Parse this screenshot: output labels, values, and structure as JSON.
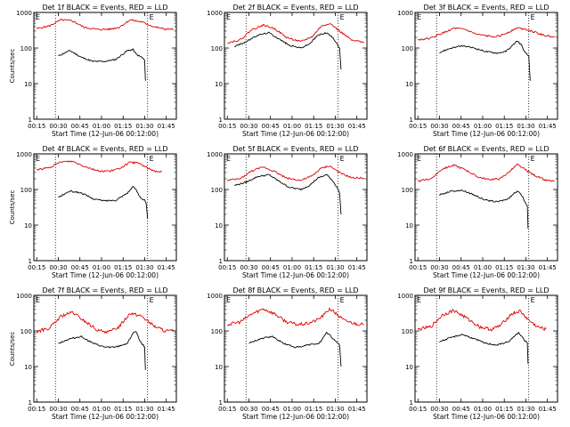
{
  "chart_data": {
    "type": "line",
    "layout": {
      "rows": 3,
      "cols": 3
    },
    "common": {
      "xlabel": "Start Time (12-Jun-06 00:12:00)",
      "ylabel": "Counts/sec",
      "x_ticks": [
        "00:15",
        "00:30",
        "00:45",
        "01:00",
        "01:15",
        "01:30",
        "01:45"
      ],
      "x_tick_minutes": [
        15,
        30,
        45,
        60,
        75,
        90,
        105
      ],
      "xlim_minutes": [
        13,
        112
      ],
      "y_scale": "log",
      "ylim": [
        1,
        1000
      ],
      "y_ticks": [
        "1",
        "10",
        "100",
        "1000"
      ],
      "y_tick_values": [
        1,
        10,
        100,
        1000
      ],
      "corner_marker": "E",
      "series_colors": {
        "events": "#000000",
        "lld": "#dd0000"
      }
    },
    "panels": [
      {
        "title": "Det 1f BLACK = Events, RED = LLD",
        "show_ylabel": true,
        "vlines": [
          28,
          92
        ],
        "events": {
          "x": [
            30,
            38,
            46,
            54,
            62,
            70,
            78,
            82,
            84,
            86,
            88,
            89,
            90,
            90.5
          ],
          "y": [
            60,
            85,
            55,
            42,
            42,
            48,
            85,
            90,
            68,
            60,
            55,
            50,
            45,
            12
          ]
        },
        "lld": {
          "x": [
            15,
            24,
            32,
            40,
            48,
            58,
            66,
            72,
            80,
            88,
            96,
            104,
            110
          ],
          "y": [
            350,
            420,
            620,
            580,
            380,
            330,
            340,
            380,
            620,
            540,
            400,
            340,
            340
          ]
        }
      },
      {
        "title": "Det 2f BLACK = Events, RED = LLD",
        "show_ylabel": false,
        "vlines": [
          28,
          92
        ],
        "events": {
          "x": [
            20,
            28,
            36,
            44,
            50,
            58,
            66,
            72,
            78,
            84,
            88,
            91,
            93,
            94
          ],
          "y": [
            110,
            150,
            230,
            270,
            190,
            120,
            100,
            130,
            230,
            270,
            200,
            140,
            100,
            25
          ]
        },
        "lld": {
          "x": [
            15,
            24,
            32,
            40,
            48,
            56,
            66,
            74,
            80,
            86,
            94,
            102,
            110
          ],
          "y": [
            140,
            170,
            330,
            440,
            350,
            200,
            150,
            210,
            400,
            500,
            280,
            160,
            150
          ]
        }
      },
      {
        "title": "Det 3f BLACK = Events, RED = LLD",
        "show_ylabel": false,
        "vlines": [
          28,
          92
        ],
        "events": {
          "x": [
            30,
            38,
            46,
            54,
            62,
            70,
            76,
            80,
            84,
            87,
            89,
            90,
            92,
            93
          ],
          "y": [
            75,
            100,
            115,
            100,
            80,
            72,
            80,
            110,
            160,
            120,
            80,
            70,
            60,
            12
          ]
        },
        "lld": {
          "x": [
            15,
            24,
            32,
            40,
            48,
            56,
            66,
            72,
            78,
            84,
            90,
            98,
            104,
            110
          ],
          "y": [
            170,
            190,
            260,
            360,
            330,
            240,
            210,
            220,
            280,
            370,
            340,
            260,
            220,
            210
          ]
        }
      },
      {
        "title": "Det 4f BLACK = Events, RED = LLD",
        "show_ylabel": true,
        "vlines": [
          28,
          92
        ],
        "events": {
          "x": [
            30,
            38,
            46,
            54,
            62,
            70,
            78,
            82,
            84,
            86,
            88,
            90,
            91,
            92
          ],
          "y": [
            60,
            90,
            80,
            55,
            48,
            50,
            80,
            120,
            100,
            70,
            55,
            50,
            40,
            15
          ]
        },
        "lld": {
          "x": [
            15,
            24,
            32,
            40,
            48,
            58,
            66,
            72,
            80,
            86,
            92,
            98,
            102
          ],
          "y": [
            360,
            410,
            600,
            620,
            450,
            330,
            330,
            380,
            580,
            550,
            400,
            320,
            320
          ]
        }
      },
      {
        "title": "Det 5f BLACK = Events, RED = LLD",
        "show_ylabel": false,
        "vlines": [
          28,
          92
        ],
        "events": {
          "x": [
            20,
            28,
            36,
            44,
            50,
            58,
            66,
            72,
            78,
            84,
            88,
            91,
            93,
            94
          ],
          "y": [
            130,
            160,
            230,
            260,
            180,
            115,
            100,
            130,
            210,
            260,
            180,
            120,
            80,
            20
          ]
        },
        "lld": {
          "x": [
            15,
            24,
            32,
            40,
            48,
            56,
            66,
            74,
            80,
            86,
            94,
            102,
            110
          ],
          "y": [
            180,
            200,
            330,
            430,
            320,
            210,
            180,
            240,
            390,
            460,
            280,
            210,
            210
          ]
        }
      },
      {
        "title": "Det 6f BLACK = Events, RED = LLD",
        "show_ylabel": false,
        "vlines": [
          28,
          92
        ],
        "events": {
          "x": [
            30,
            38,
            46,
            54,
            62,
            70,
            78,
            82,
            85,
            88,
            89,
            90,
            91,
            91.5
          ],
          "y": [
            70,
            90,
            95,
            70,
            50,
            45,
            55,
            80,
            90,
            60,
            45,
            40,
            35,
            8
          ]
        },
        "lld": {
          "x": [
            15,
            24,
            32,
            40,
            48,
            56,
            64,
            72,
            78,
            84,
            90,
            96,
            104,
            110
          ],
          "y": [
            170,
            200,
            380,
            480,
            360,
            230,
            190,
            200,
            300,
            500,
            350,
            250,
            180,
            170
          ]
        }
      },
      {
        "title": "Det 7f BLACK = Events, RED = LLD",
        "show_ylabel": true,
        "vlines": [
          28,
          92
        ],
        "events": {
          "x": [
            30,
            38,
            46,
            54,
            62,
            70,
            78,
            82,
            84,
            86,
            88,
            89,
            90,
            90.5
          ],
          "y": [
            45,
            60,
            70,
            45,
            35,
            35,
            45,
            90,
            95,
            60,
            45,
            40,
            35,
            8
          ]
        },
        "lld": {
          "x": [
            15,
            24,
            32,
            40,
            48,
            58,
            66,
            72,
            80,
            88,
            96,
            104,
            110
          ],
          "y": [
            95,
            120,
            260,
            330,
            190,
            100,
            95,
            130,
            320,
            260,
            140,
            100,
            100
          ]
        }
      },
      {
        "title": "Det 8f BLACK = Events, RED = LLD",
        "show_ylabel": false,
        "vlines": [
          28,
          92
        ],
        "events": {
          "x": [
            30,
            38,
            46,
            54,
            62,
            66,
            70,
            74,
            78,
            80,
            84,
            86,
            88,
            91,
            93,
            94
          ],
          "y": [
            45,
            60,
            70,
            45,
            35,
            35,
            40,
            42,
            45,
            50,
            90,
            80,
            60,
            50,
            40,
            10
          ]
        },
        "lld": {
          "x": [
            15,
            24,
            32,
            40,
            48,
            56,
            64,
            70,
            74,
            78,
            82,
            86,
            90,
            96,
            104,
            110
          ],
          "y": [
            150,
            180,
            300,
            420,
            300,
            180,
            150,
            160,
            180,
            210,
            280,
            420,
            320,
            200,
            160,
            150
          ]
        }
      },
      {
        "title": "Det 9f BLACK = Events, RED = LLD",
        "show_ylabel": false,
        "vlines": [
          28,
          92
        ],
        "events": {
          "x": [
            30,
            38,
            46,
            54,
            62,
            70,
            78,
            82,
            85,
            87,
            89,
            90,
            91,
            91.5
          ],
          "y": [
            50,
            65,
            80,
            60,
            45,
            40,
            50,
            70,
            90,
            70,
            55,
            50,
            45,
            12
          ]
        },
        "lld": {
          "x": [
            15,
            24,
            32,
            40,
            48,
            58,
            66,
            72,
            80,
            86,
            92,
            98,
            104
          ],
          "y": [
            110,
            130,
            280,
            380,
            240,
            130,
            110,
            140,
            300,
            360,
            200,
            130,
            110
          ]
        }
      }
    ]
  }
}
